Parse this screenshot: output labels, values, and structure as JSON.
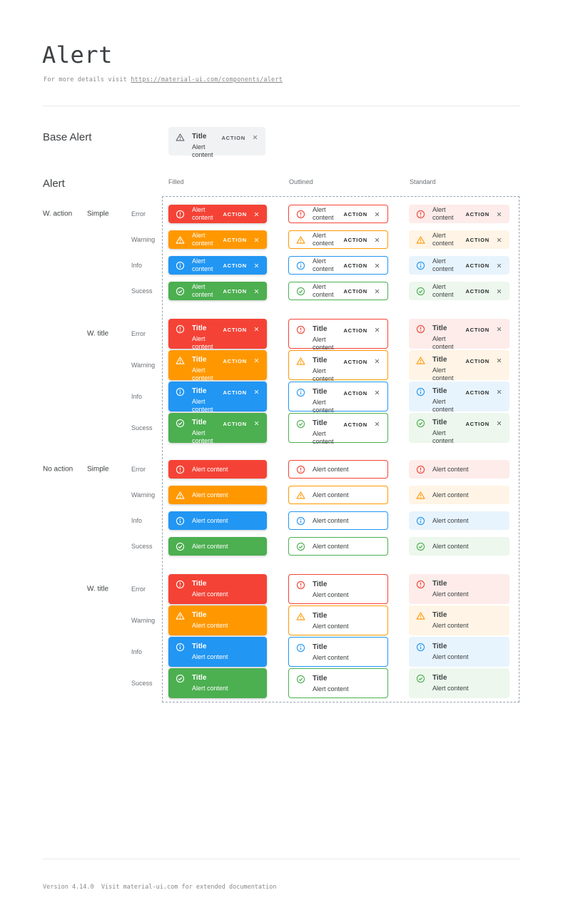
{
  "page": {
    "title": "Alert",
    "subtitle_prefix": "For more details visit ",
    "subtitle_link": "https://material-ui.com/components/alert",
    "footer": "Version 4.14.0  Visit material-ui.com for extended documentation"
  },
  "base_section": {
    "label": "Base Alert",
    "alert": {
      "title": "Title",
      "content": "Alert content",
      "action": "ACTION"
    }
  },
  "grid_section": {
    "label": "Alert",
    "column_headers": [
      "Filled",
      "Outlined",
      "Standard"
    ],
    "strings": {
      "title": "Title",
      "content": "Alert content",
      "action": "ACTION"
    },
    "severities": [
      {
        "key": "error",
        "label": "Error",
        "icon": "error-icon",
        "color": "#f44336",
        "standard_bg": "#fdecea"
      },
      {
        "key": "warning",
        "label": "Warning",
        "icon": "warning-icon",
        "color": "#ff9800",
        "standard_bg": "#fff4e5"
      },
      {
        "key": "info",
        "label": "Info",
        "icon": "info-icon",
        "color": "#2196f3",
        "standard_bg": "#e8f4fd"
      },
      {
        "key": "success",
        "label": "Sucess",
        "icon": "success-icon",
        "color": "#4caf50",
        "standard_bg": "#edf7ed"
      }
    ],
    "groups": [
      {
        "label": "W. action",
        "with_action": true,
        "subgroups": [
          {
            "label": "Simple",
            "with_title": false
          },
          {
            "label": "W. title",
            "with_title": true
          }
        ]
      },
      {
        "label": "No action",
        "with_action": false,
        "subgroups": [
          {
            "label": "Simple",
            "with_title": false
          },
          {
            "label": "W. title",
            "with_title": true
          }
        ]
      }
    ],
    "variants": [
      "filled",
      "outlined",
      "standard"
    ]
  },
  "colors": {
    "text_dark": "#3d4143",
    "text_muted": "#6b7075",
    "mono_gray": "#87898c",
    "divider": "#e9eaeb",
    "dashed_border": "#95a4b3",
    "base_alert_bg": "#f1f2f3",
    "filled_text": "#ffffff"
  }
}
